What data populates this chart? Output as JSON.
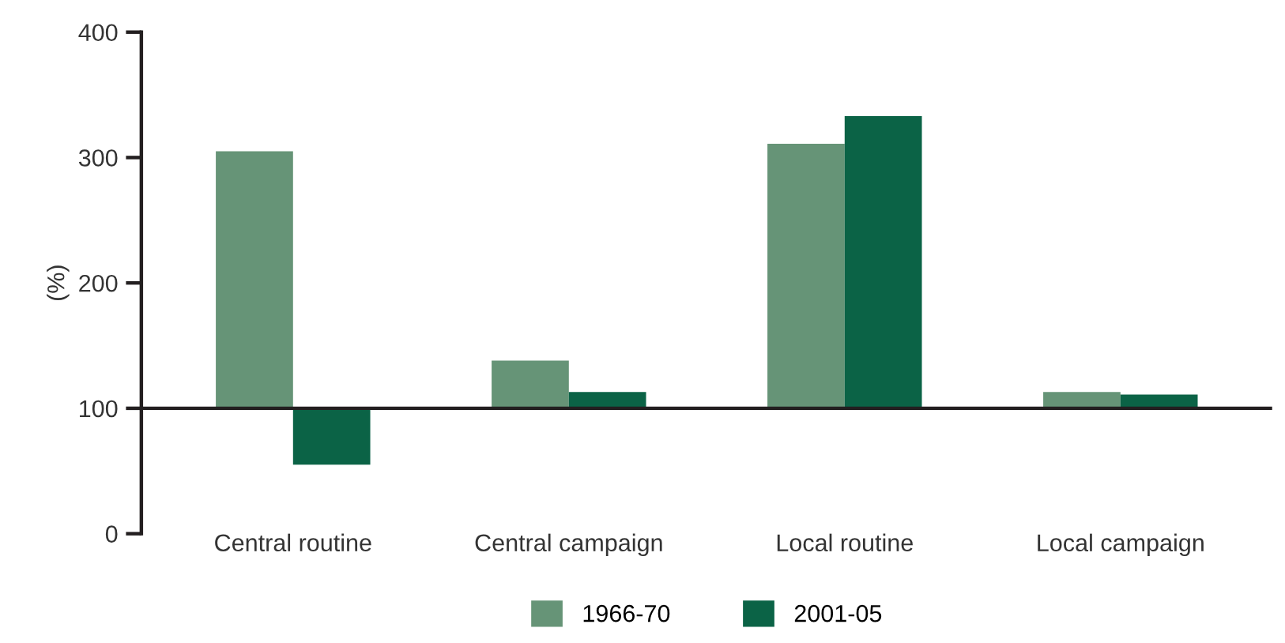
{
  "chart_data": {
    "type": "bar",
    "ylabel": "(%)",
    "categories": [
      "Central routine",
      "Central campaign",
      "Local routine",
      "Local campaign"
    ],
    "series": [
      {
        "name": "1966-70",
        "color": "#669477",
        "base": [
          100,
          100,
          100,
          100
        ],
        "values": [
          205,
          38,
          211,
          13
        ]
      },
      {
        "name": "2001-05",
        "color": "#0b6346",
        "base": [
          100,
          100,
          100,
          100
        ],
        "values": [
          -45,
          13,
          233,
          11
        ]
      }
    ],
    "ylim": [
      0,
      400
    ],
    "yticks": [
      0,
      100,
      200,
      300,
      400
    ],
    "grid": false,
    "legend": "bottom",
    "ref_lines": [
      {
        "axis": "y",
        "value": 100,
        "color": "#231f20"
      }
    ]
  }
}
